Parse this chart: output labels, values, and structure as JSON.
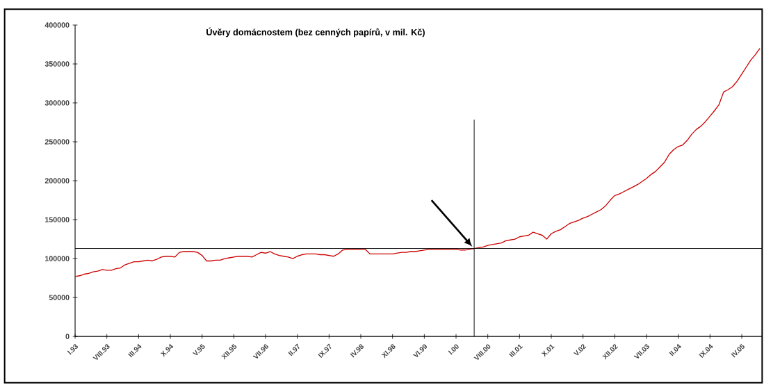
{
  "chart_data": {
    "type": "line",
    "title": "Úvěry domácnostem (bez cenných papírů, v mil. Kč)",
    "categories": [
      "I.93",
      null,
      null,
      null,
      null,
      null,
      null,
      "VIII.93",
      null,
      null,
      null,
      null,
      null,
      null,
      "III.94",
      null,
      null,
      null,
      null,
      null,
      null,
      "X.94",
      null,
      null,
      null,
      null,
      null,
      null,
      "V.95",
      null,
      null,
      null,
      null,
      null,
      null,
      "XII.95",
      null,
      null,
      null,
      null,
      null,
      null,
      "VII.96",
      null,
      null,
      null,
      null,
      null,
      null,
      "II.97",
      null,
      null,
      null,
      null,
      null,
      null,
      "IX.97",
      null,
      null,
      null,
      null,
      null,
      null,
      "IV.98",
      null,
      null,
      null,
      null,
      null,
      null,
      "XI.98",
      null,
      null,
      null,
      null,
      null,
      null,
      "VI.99",
      null,
      null,
      null,
      null,
      null,
      null,
      "I.00",
      null,
      null,
      null,
      null,
      null,
      null,
      "VIII.00",
      null,
      null,
      null,
      null,
      null,
      null,
      "III.01",
      null,
      null,
      null,
      null,
      null,
      null,
      "X.01",
      null,
      null,
      null,
      null,
      null,
      null,
      "V.02",
      null,
      null,
      null,
      null,
      null,
      null,
      "XII.02",
      null,
      null,
      null,
      null,
      null,
      null,
      "VII.03",
      null,
      null,
      null,
      null,
      null,
      null,
      "II.04",
      null,
      null,
      null,
      null,
      null,
      null,
      "IX.04",
      null,
      null,
      null,
      null,
      null,
      null,
      "IV.05",
      null,
      null,
      null,
      null
    ],
    "values": [
      77000,
      78000,
      80000,
      81000,
      83000,
      84000,
      86000,
      85000,
      85000,
      87000,
      88000,
      92000,
      94000,
      96000,
      96000,
      97000,
      98000,
      97000,
      99000,
      102000,
      103000,
      103000,
      102000,
      108000,
      109000,
      109000,
      109000,
      108000,
      104000,
      97000,
      97000,
      98000,
      98000,
      100000,
      101000,
      102000,
      103000,
      103000,
      103000,
      102000,
      105000,
      108000,
      107000,
      109000,
      106000,
      104000,
      103000,
      102000,
      100000,
      103000,
      105000,
      106000,
      106000,
      106000,
      105000,
      105000,
      104000,
      103000,
      106000,
      111000,
      112000,
      112000,
      112000,
      112000,
      112000,
      106000,
      106000,
      106000,
      106000,
      106000,
      106000,
      107000,
      108000,
      108000,
      109000,
      109000,
      110000,
      111000,
      112000,
      112000,
      112000,
      112000,
      112000,
      112000,
      112000,
      111000,
      111000,
      112000,
      113000,
      114000,
      115000,
      117000,
      118000,
      119000,
      120000,
      123000,
      124000,
      125000,
      128000,
      129000,
      130000,
      134000,
      132000,
      130000,
      125000,
      132000,
      135000,
      137000,
      141000,
      145000,
      147000,
      149000,
      152000,
      154000,
      157000,
      160000,
      163000,
      168000,
      175000,
      181000,
      183000,
      186000,
      189000,
      192000,
      195000,
      199000,
      203000,
      208000,
      212000,
      218000,
      224000,
      234000,
      240000,
      244000,
      246000,
      252000,
      260000,
      266000,
      270000,
      276000,
      283000,
      290000,
      298000,
      314000,
      317000,
      321000,
      328000,
      337000,
      346000,
      355000,
      362000,
      370000
    ],
    "color": "#cc0000",
    "ylim": [
      0,
      400000
    ],
    "yticks": [
      0,
      50000,
      100000,
      150000,
      200000,
      250000,
      300000,
      350000,
      400000
    ],
    "ref_lines": [
      {
        "axis": "y",
        "value": 113000,
        "color": "#000000"
      }
    ]
  }
}
